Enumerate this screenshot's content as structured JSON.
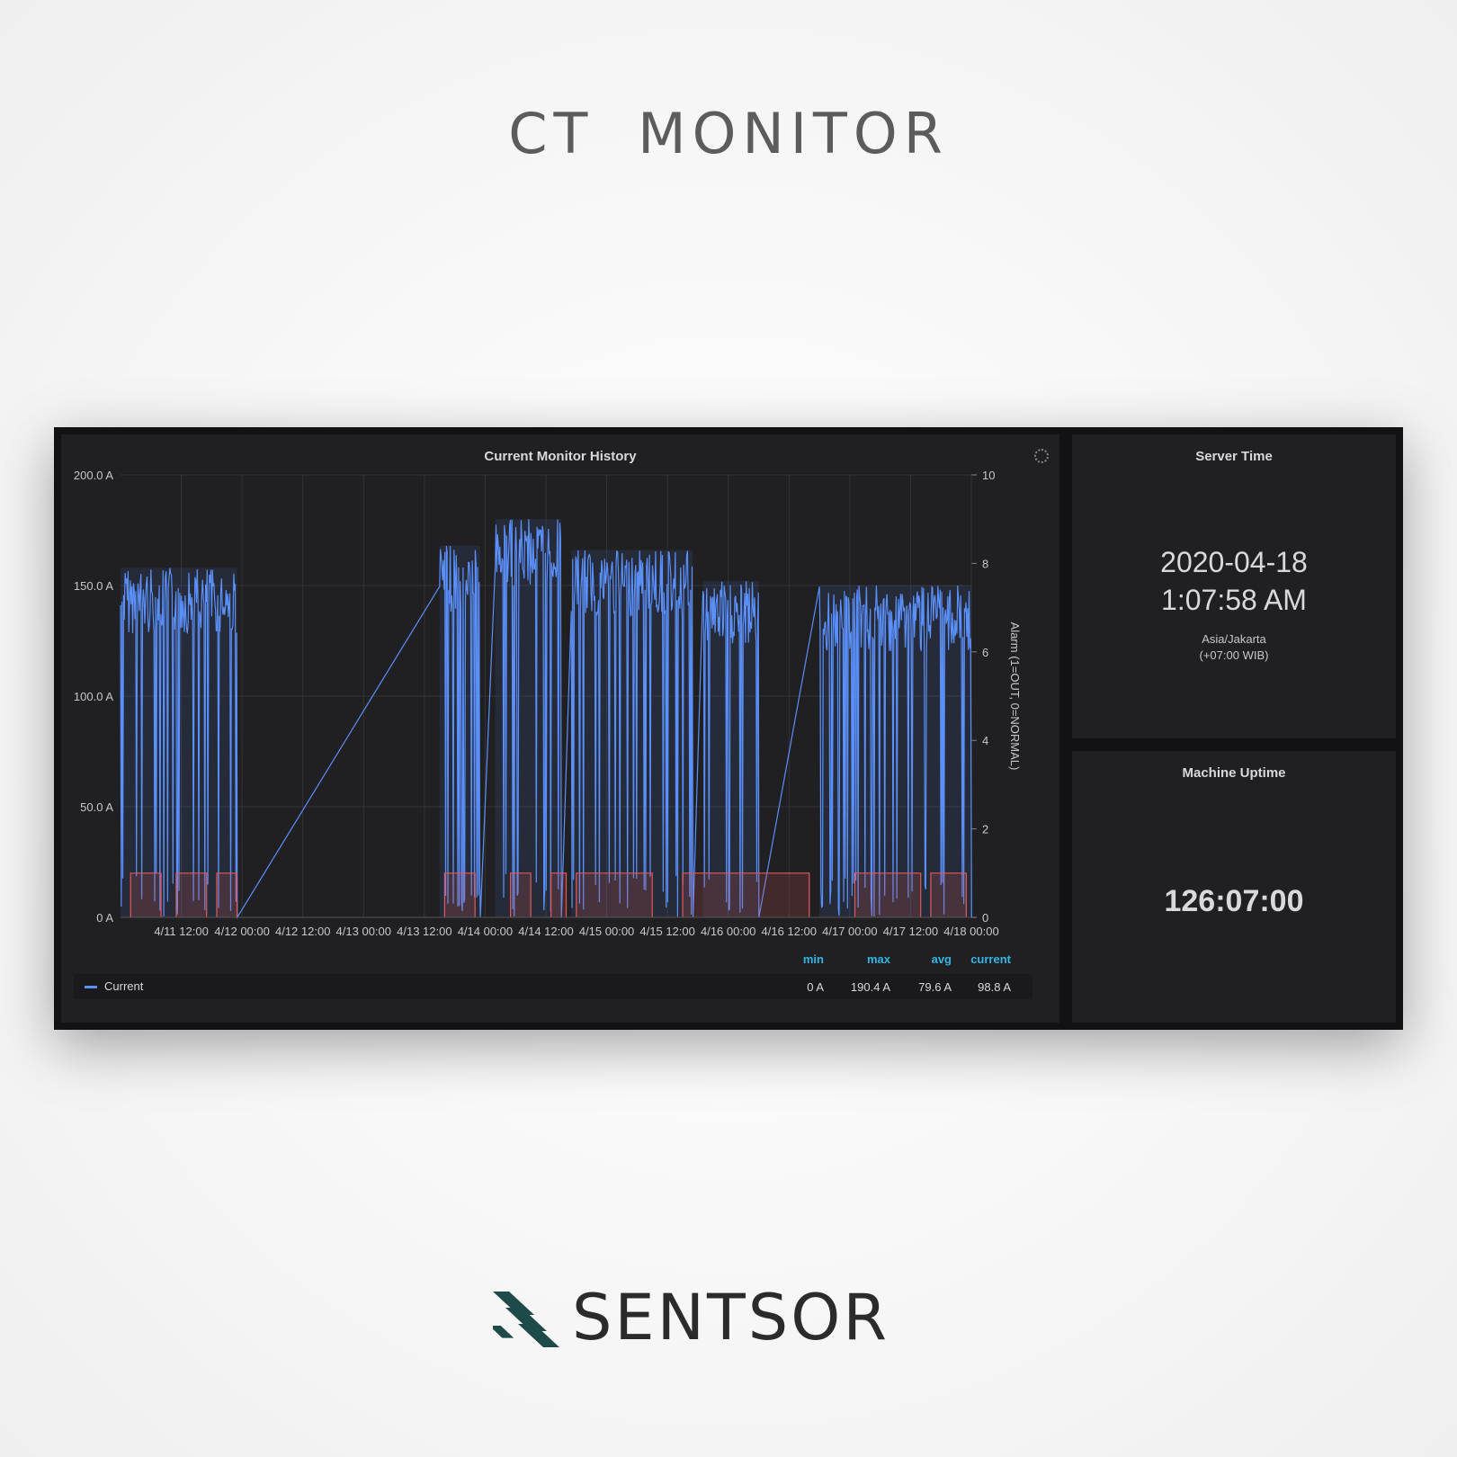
{
  "page": {
    "title": "CT   MONITOR"
  },
  "chart_panel": {
    "title": "Current Monitor History",
    "legend": {
      "series_name": "Current",
      "headers": [
        "min",
        "max",
        "avg",
        "current"
      ],
      "values": [
        "0 A",
        "190.4 A",
        "79.6 A",
        "98.8 A"
      ]
    }
  },
  "chart_data": {
    "type": "line",
    "title": "Current Monitor History",
    "xlabel": "",
    "ylabel": "",
    "y2label": "Alarm (1=OUT, 0=NORMAL)",
    "x_ticks": [
      "4/11 12:00",
      "4/12 00:00",
      "4/12 12:00",
      "4/13 00:00",
      "4/13 12:00",
      "4/14 00:00",
      "4/14 12:00",
      "4/15 00:00",
      "4/15 12:00",
      "4/16 00:00",
      "4/16 12:00",
      "4/17 00:00",
      "4/17 12:00",
      "4/18 00:00"
    ],
    "y_ticks": [
      "200.0 A",
      "150.0 A",
      "100.0 A",
      "50.0 A",
      "0 A"
    ],
    "y2_ticks": [
      "10",
      "8",
      "6",
      "4",
      "2",
      "0"
    ],
    "ylim": [
      0,
      200
    ],
    "y2lim": [
      0,
      10
    ],
    "xlim_hours": [
      0,
      168
    ],
    "grid": true,
    "legend_position": "bottom-left",
    "series": [
      {
        "name": "Current",
        "axis": "left",
        "color": "#5b8ff9",
        "active_periods": [
          [
            -4,
            23
          ],
          [
            63,
            71
          ],
          [
            74,
            87
          ],
          [
            89,
            113
          ],
          [
            115,
            126
          ],
          [
            138,
            184
          ]
        ],
        "peak_levels": [
          168,
          178,
          190,
          176,
          162,
          160,
          164,
          130,
          166,
          170,
          164,
          160,
          178,
          165
        ]
      },
      {
        "name": "",
        "axis": "right",
        "color": "#e05a5a",
        "levels": [
          0,
          1
        ],
        "high_periods": [
          [
            2,
            8
          ],
          [
            11,
            17
          ],
          [
            19,
            23
          ],
          [
            64,
            70
          ],
          [
            77,
            81
          ],
          [
            85,
            88
          ],
          [
            90,
            105
          ],
          [
            111,
            136
          ],
          [
            145,
            158
          ],
          [
            160,
            167
          ]
        ]
      }
    ]
  },
  "server_time": {
    "title": "Server Time",
    "date": "2020-04-18",
    "time": "1:07:58 AM",
    "timezone": "Asia/Jakarta",
    "offset": "(+07:00 WIB)"
  },
  "uptime": {
    "title": "Machine Uptime",
    "value": "126:07:00"
  },
  "brand": {
    "name": "SENTSOR",
    "icon": "sentsor-logo-icon",
    "icon_color": "#1f4a4a"
  }
}
